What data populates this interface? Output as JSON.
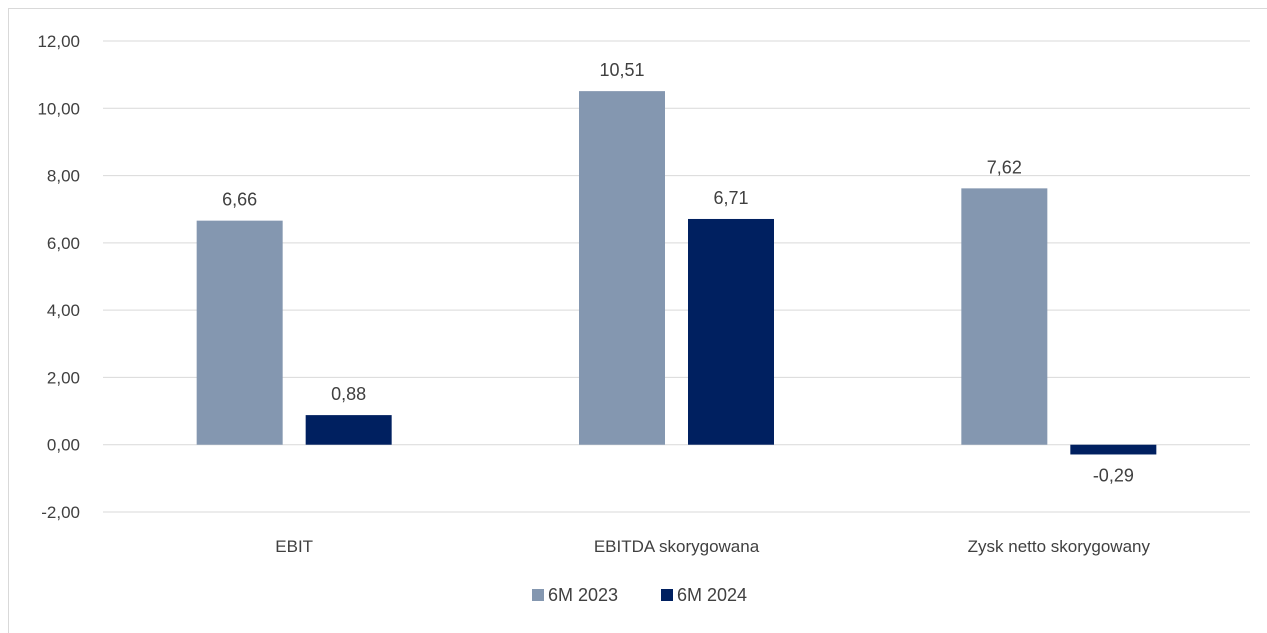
{
  "chart_data": {
    "type": "bar",
    "categories": [
      "EBIT",
      "EBITDA skorygowana",
      "Zysk netto skorygowany"
    ],
    "series": [
      {
        "name": "6M 2023",
        "values": [
          6.66,
          10.51,
          7.62
        ],
        "labels": [
          "6,66",
          "10,51",
          "7,62"
        ],
        "color": "#8497b0"
      },
      {
        "name": "6M 2024",
        "values": [
          0.88,
          6.71,
          -0.29
        ],
        "labels": [
          "0,88",
          "6,71",
          "-0,29"
        ],
        "color": "#002060"
      }
    ],
    "ylim": [
      -2,
      12
    ],
    "yticks": [
      -2,
      0,
      2,
      4,
      6,
      8,
      10,
      12
    ],
    "ytick_labels": [
      "-2,00",
      "0,00",
      "2,00",
      "4,00",
      "6,00",
      "8,00",
      "10,00",
      "12,00"
    ],
    "grid": true,
    "legend": "bottom-center",
    "colors": {
      "gridline": "#d9d9d9",
      "text": "#404040"
    }
  }
}
